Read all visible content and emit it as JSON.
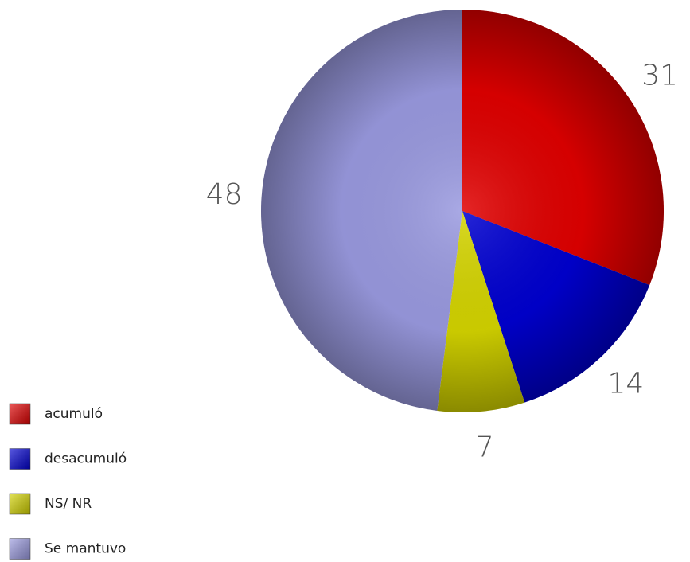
{
  "chart_data": {
    "type": "pie",
    "categories": [
      "acumuló",
      "desacumuló",
      "NS/ NR",
      "Se mantuvo"
    ],
    "values": [
      31,
      14,
      7,
      48
    ],
    "colors": [
      "#e00000",
      "#0000d0",
      "#d4d400",
      "#9a9ae0"
    ],
    "legend": "bottom-left"
  }
}
